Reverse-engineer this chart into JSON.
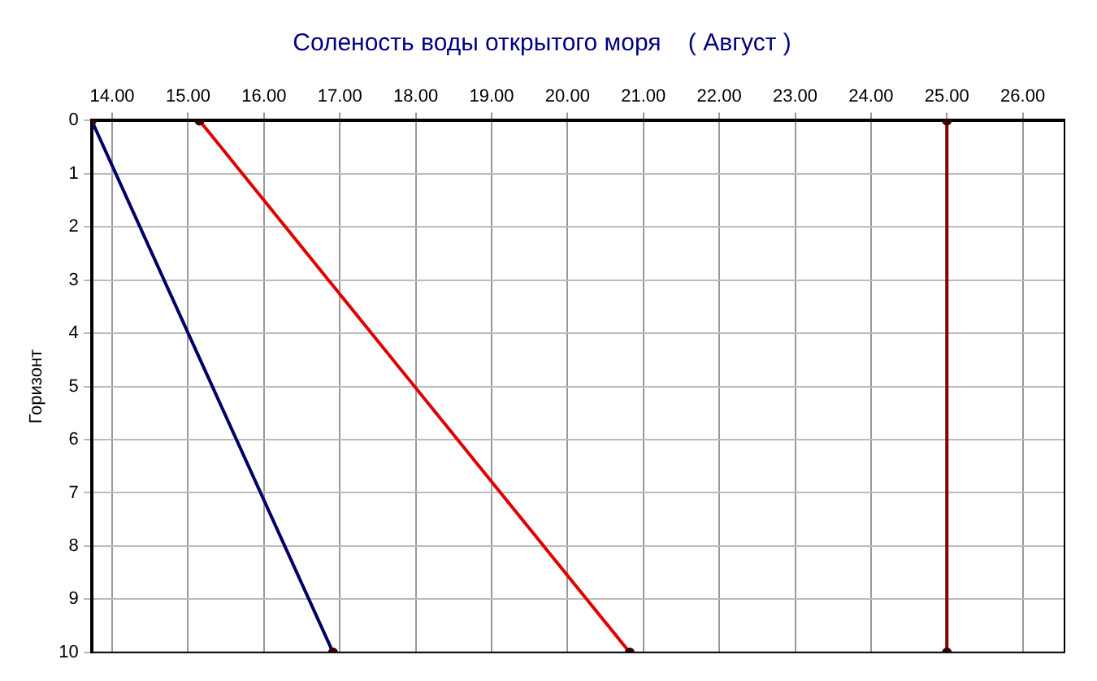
{
  "chart_data": {
    "type": "line",
    "title": "Соленость воды открытого моря    ( Август )",
    "ylabel": "Горизонт",
    "xlim": [
      13.73,
      26.55
    ],
    "xticks": [
      {
        "value": 14,
        "label": "14.00"
      },
      {
        "value": 15,
        "label": "15.00"
      },
      {
        "value": 16,
        "label": "16.00"
      },
      {
        "value": 17,
        "label": "17.00"
      },
      {
        "value": 18,
        "label": "18.00"
      },
      {
        "value": 19,
        "label": "19.00"
      },
      {
        "value": 20,
        "label": "20.00"
      },
      {
        "value": 21,
        "label": "21.00"
      },
      {
        "value": 22,
        "label": "22.00"
      },
      {
        "value": 23,
        "label": "23.00"
      },
      {
        "value": 24,
        "label": "24.00"
      },
      {
        "value": 25,
        "label": "25.00"
      },
      {
        "value": 26,
        "label": "26.00"
      }
    ],
    "ylim": [
      10,
      0
    ],
    "yticks": [
      0,
      1,
      2,
      3,
      4,
      5,
      6,
      7,
      8,
      9,
      10
    ],
    "series": [
      {
        "color": "#000066",
        "x": [
          13.73,
          16.91
        ],
        "values": [
          0,
          10
        ]
      },
      {
        "color": "#e00000",
        "x": [
          15.15,
          20.82
        ],
        "values": [
          0,
          10
        ]
      },
      {
        "color": "#800000",
        "x": [
          25.0,
          25.0
        ],
        "values": [
          0,
          10
        ]
      }
    ],
    "grid": true,
    "legend": false,
    "marker": "circle",
    "line_style": "solid"
  }
}
